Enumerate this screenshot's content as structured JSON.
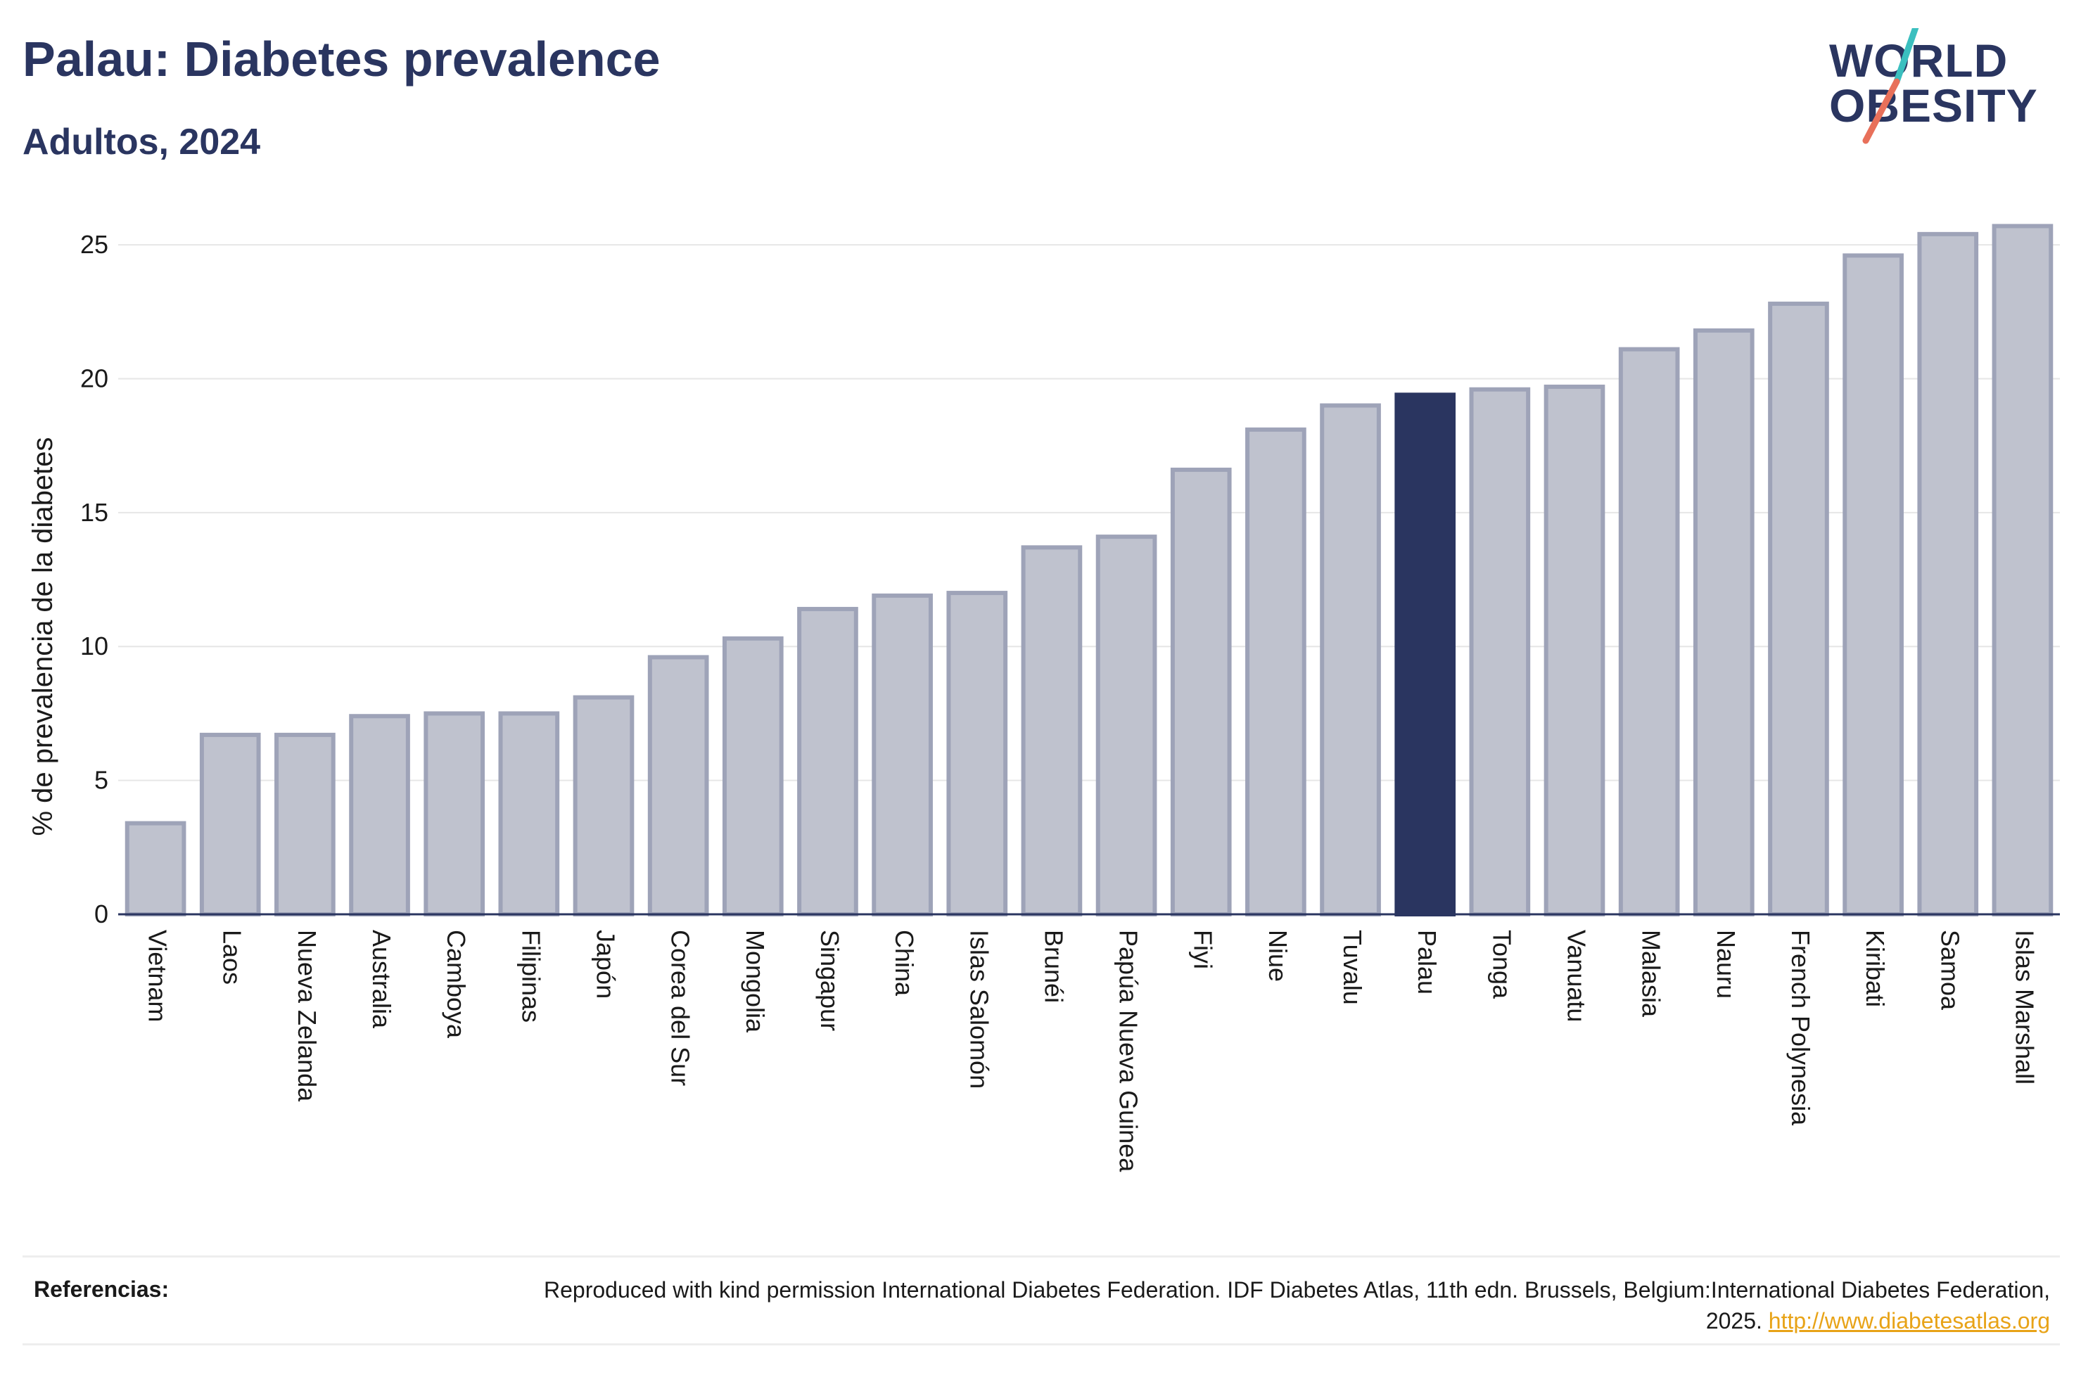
{
  "header": {
    "title": "Palau: Diabetes prevalence",
    "subtitle": "Adultos, 2024"
  },
  "logo": {
    "line1": "WORLD",
    "line2": "OBESITY",
    "slash_colors": [
      "#3bbfbf",
      "#e8705a"
    ]
  },
  "colors": {
    "highlight": "#2a3560",
    "bar_fill": "#bfc2ce",
    "bar_stroke": "#9ea3b8",
    "grid": "#e6e6e6",
    "axis": "#2a3560"
  },
  "chart_data": {
    "type": "bar",
    "ylabel": "% de prevalencia de la diabetes",
    "ylim": [
      0,
      26
    ],
    "yticks": [
      0,
      5,
      10,
      15,
      20,
      25
    ],
    "grid": true,
    "highlight": "Palau",
    "categories": [
      "Vietnam",
      "Laos",
      "Nueva Zelanda",
      "Australia",
      "Camboya",
      "Filipinas",
      "Japón",
      "Corea del Sur",
      "Mongolia",
      "Singapur",
      "China",
      "Islas Salomón",
      "Brunéi",
      "Papúa Nueva Guinea",
      "Fiyi",
      "Niue",
      "Tuvalu",
      "Palau",
      "Tonga",
      "Vanuatu",
      "Malasia",
      "Nauru",
      "French Polynesia",
      "Kiribati",
      "Samoa",
      "Islas Marshall"
    ],
    "values": [
      3.4,
      6.7,
      6.7,
      7.4,
      7.5,
      7.5,
      8.1,
      9.6,
      10.3,
      11.4,
      11.9,
      12.0,
      13.7,
      14.1,
      16.6,
      18.1,
      19.0,
      19.4,
      19.6,
      19.7,
      21.1,
      21.8,
      22.8,
      24.6,
      25.4,
      25.7
    ]
  },
  "footer": {
    "references_label": "Referencias:",
    "references_text": "Reproduced with kind permission International Diabetes Federation. IDF Diabetes Atlas, 11th edn. Brussels, Belgium:International Diabetes Federation, 2025.",
    "references_link": "http://www.diabetesatlas.org"
  }
}
